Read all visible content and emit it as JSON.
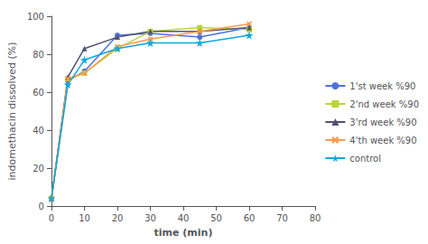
{
  "chart_data": {
    "type": "line",
    "x": [
      0,
      5,
      10,
      20,
      30,
      45,
      60
    ],
    "xlabel": "time (min)",
    "ylabel": "indomethacin dissolved (%)",
    "series": [
      {
        "name": "1'st week %90",
        "values": [
          4,
          66,
          71,
          90,
          91,
          89,
          94
        ],
        "marker": "circle",
        "line_style": "solid"
      },
      {
        "name": "2'nd week %90",
        "values": [
          4,
          67,
          70,
          83,
          92,
          94,
          93
        ],
        "marker": "square",
        "line_style": "solid"
      },
      {
        "name": "3'rd week %90",
        "values": [
          4,
          68,
          83,
          89,
          92,
          92,
          94
        ],
        "marker": "triangle",
        "line_style": "solid"
      },
      {
        "name": "4'th week %90",
        "values": [
          4,
          67,
          70,
          84,
          88,
          92,
          96
        ],
        "marker": "x",
        "line_style": "solid"
      },
      {
        "name": "control",
        "values": [
          4,
          64,
          77,
          83,
          86,
          86,
          90
        ],
        "marker": "star",
        "line_style": "solid"
      }
    ],
    "xlim": [
      0,
      80
    ],
    "xticks": [
      0,
      10,
      20,
      30,
      40,
      50,
      60,
      70,
      80
    ],
    "ylim": [
      0,
      100
    ],
    "yticks": [
      0,
      20,
      40,
      60,
      80,
      100
    ],
    "grid": false,
    "legend": "right"
  }
}
